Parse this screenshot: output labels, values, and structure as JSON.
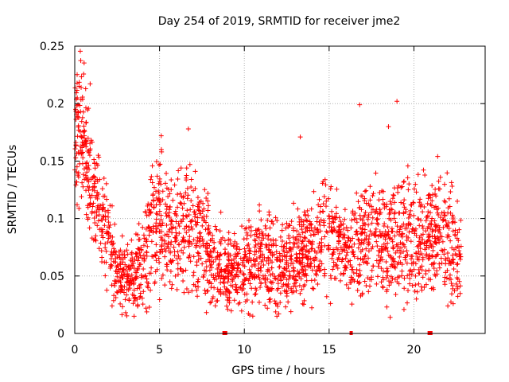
{
  "chart_data": {
    "type": "scatter",
    "title": "Day 254 of 2019, SRMTID for receiver jme2",
    "xlabel": "GPS time / hours",
    "ylabel": "SRMTID / TECUs",
    "xlim": [
      0,
      24.2
    ],
    "ylim": [
      0,
      0.25
    ],
    "x_ticks": [
      0,
      5,
      10,
      15,
      20
    ],
    "x_tick_labels": [
      "0",
      "5",
      "10",
      "15",
      "20"
    ],
    "y_ticks": [
      0,
      0.05,
      0.1,
      0.15,
      0.2,
      0.25
    ],
    "y_tick_labels": [
      "0",
      "0.05",
      "0.1",
      "0.15",
      "0.2",
      "0.25"
    ],
    "grid": true,
    "marker": "plus",
    "series": [
      {
        "name": "SRMTID",
        "color": "#ff0000",
        "envelope": [
          [
            0.0,
            0.17,
            0.035
          ],
          [
            0.3,
            0.18,
            0.03
          ],
          [
            0.6,
            0.16,
            0.03
          ],
          [
            1.0,
            0.13,
            0.03
          ],
          [
            1.5,
            0.1,
            0.025
          ],
          [
            2.0,
            0.08,
            0.02
          ],
          [
            2.5,
            0.055,
            0.015
          ],
          [
            3.0,
            0.05,
            0.015
          ],
          [
            3.5,
            0.05,
            0.015
          ],
          [
            4.0,
            0.06,
            0.02
          ],
          [
            4.5,
            0.09,
            0.03
          ],
          [
            5.0,
            0.1,
            0.03
          ],
          [
            5.5,
            0.09,
            0.025
          ],
          [
            6.0,
            0.08,
            0.025
          ],
          [
            6.5,
            0.1,
            0.03
          ],
          [
            7.0,
            0.09,
            0.025
          ],
          [
            7.5,
            0.08,
            0.025
          ],
          [
            8.0,
            0.06,
            0.02
          ],
          [
            8.5,
            0.06,
            0.02
          ],
          [
            9.0,
            0.055,
            0.015
          ],
          [
            9.5,
            0.055,
            0.015
          ],
          [
            10.0,
            0.06,
            0.02
          ],
          [
            10.5,
            0.06,
            0.02
          ],
          [
            11.0,
            0.065,
            0.02
          ],
          [
            11.5,
            0.06,
            0.02
          ],
          [
            12.0,
            0.055,
            0.02
          ],
          [
            12.5,
            0.06,
            0.02
          ],
          [
            13.0,
            0.07,
            0.02
          ],
          [
            13.5,
            0.07,
            0.02
          ],
          [
            14.0,
            0.075,
            0.02
          ],
          [
            14.5,
            0.08,
            0.02
          ],
          [
            15.0,
            0.09,
            0.025
          ],
          [
            15.5,
            0.08,
            0.02
          ],
          [
            16.0,
            0.065,
            0.02
          ],
          [
            16.5,
            0.07,
            0.02
          ],
          [
            17.0,
            0.08,
            0.025
          ],
          [
            17.5,
            0.09,
            0.025
          ],
          [
            18.0,
            0.09,
            0.025
          ],
          [
            18.5,
            0.08,
            0.025
          ],
          [
            19.0,
            0.09,
            0.025
          ],
          [
            19.5,
            0.085,
            0.025
          ],
          [
            20.0,
            0.085,
            0.025
          ],
          [
            20.5,
            0.08,
            0.025
          ],
          [
            21.0,
            0.085,
            0.025
          ],
          [
            21.5,
            0.09,
            0.025
          ],
          [
            22.0,
            0.08,
            0.025
          ],
          [
            22.5,
            0.07,
            0.02
          ],
          [
            22.8,
            0.06,
            0.02
          ]
        ],
        "notable_points": [
          [
            0.25,
            0.215
          ],
          [
            0.15,
            0.205
          ],
          [
            0.05,
            0.195
          ],
          [
            6.7,
            0.178
          ],
          [
            13.3,
            0.171
          ],
          [
            16.8,
            0.199
          ],
          [
            19.0,
            0.202
          ],
          [
            18.5,
            0.18
          ],
          [
            5.1,
            0.172
          ],
          [
            21.4,
            0.154
          ],
          [
            2.2,
            0.024
          ],
          [
            4.2,
            0.022
          ],
          [
            3.5,
            0.015
          ],
          [
            18.6,
            0.014
          ],
          [
            18.4,
            0.023
          ],
          [
            22.0,
            0.024
          ]
        ],
        "ground_points": [
          [
            8.8,
            0.0
          ],
          [
            8.9,
            0.0
          ],
          [
            16.3,
            0.0
          ],
          [
            20.9,
            0.0
          ],
          [
            21.0,
            0.0
          ]
        ]
      }
    ]
  }
}
